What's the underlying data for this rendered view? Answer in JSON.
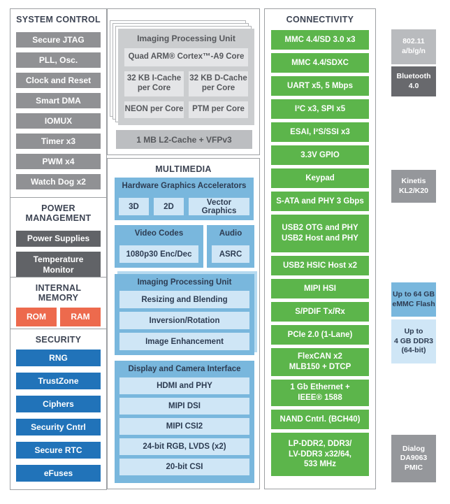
{
  "palette": {
    "green": "#5cb54b",
    "security_blue": "#2173b9",
    "memory_orange": "#ed6a4d",
    "system_gray": "#909194",
    "power_dark_gray": "#616367",
    "cpu_card_gray": "#cbcdcf",
    "cpu_cell_gray": "#e4e5e7",
    "l2_gray": "#bcbec1",
    "multimedia_blue": "#79b7dd",
    "multimedia_light_blue": "#cfe6f6",
    "heading_navy": "#3d4453",
    "ext_light_gray": "#b9bbbe",
    "ext_dark_gray": "#68696d",
    "ext_gray": "#95979b"
  },
  "left": {
    "system_control": {
      "title": "SYSTEM CONTROL",
      "items": [
        "Secure JTAG",
        "PLL, Osc.",
        "Clock and Reset",
        "Smart DMA",
        "IOMUX",
        "Timer x3",
        "PWM x4",
        "Watch Dog x2"
      ]
    },
    "power_management": {
      "title": "POWER\nMANAGEMENT",
      "items": [
        "Power Supplies",
        "Temperature\nMonitor"
      ]
    },
    "internal_memory": {
      "title": "INTERNAL\nMEMORY",
      "items": [
        "ROM",
        "RAM"
      ]
    },
    "security": {
      "title": "SECURITY",
      "items": [
        "RNG",
        "TrustZone",
        "Ciphers",
        "Security Cntrl",
        "Secure RTC",
        "eFuses"
      ]
    }
  },
  "cpu": {
    "card_title": "Imaging Processing Unit",
    "core": "Quad ARM® Cortex™-A9 Core",
    "cells": [
      "32 KB I-Cache\nper Core",
      "32 KB D-Cache\nper Core",
      "NEON per Core",
      "PTM per Core"
    ],
    "l2": "1 MB L2-Cache + VFPv3"
  },
  "multimedia": {
    "title": "MULTIMEDIA",
    "graphics": {
      "title": "Hardware Graphics Accelerators",
      "items": [
        "3D",
        "2D",
        "Vector Graphics"
      ]
    },
    "video": {
      "title": "Video Codes",
      "items": [
        "1080p30 Enc/Dec"
      ]
    },
    "audio": {
      "title": "Audio",
      "items": [
        "ASRC"
      ]
    },
    "ipu": {
      "title": "Imaging Processing Unit",
      "items": [
        "Resizing and Blending",
        "Inversion/Rotation",
        "Image Enhancement"
      ]
    },
    "display": {
      "title": "Display and Camera Interface",
      "items": [
        "HDMI and PHY",
        "MIPI DSI",
        "MIPI CSI2",
        "24-bit RGB, LVDS (x2)",
        "20-bit CSI"
      ]
    }
  },
  "connectivity": {
    "title": "CONNECTIVITY",
    "items": [
      "MMC 4.4/SD 3.0 x3",
      "MMC 4.4/SDXC",
      "UART x5, 5 Mbps",
      "I²C x3, SPI x5",
      "ESAI, I²S/SSI x3",
      "3.3V GPIO",
      "Keypad",
      "S-ATA and PHY 3 Gbps",
      "USB2 OTG and PHY\nUSB2 Host and PHY",
      "USB2 HSIC Host x2",
      "MIPI HSI",
      "S/PDIF Tx/Rx",
      "PCIe 2.0 (1-Lane)",
      "FlexCAN x2\nMLB150 + DTCP",
      "1 Gb Ethernet +\nIEEE® 1588",
      "NAND Cntrl. (BCH40)",
      "LP-DDR2, DDR3/\nLV-DDR3 x32/64,\n533 MHz"
    ]
  },
  "external": {
    "wifi": "802.11\na/b/g/n",
    "bluetooth": "Bluetooth\n4.0",
    "kinetis": "Kinetis\nKL2/K20",
    "emmc": "Up to 64 GB\neMMC Flash",
    "ddr3": "Up to\n4 GB DDR3\n(64-bit)",
    "pmic": "Dialog\nDA9063\nPMIC"
  }
}
